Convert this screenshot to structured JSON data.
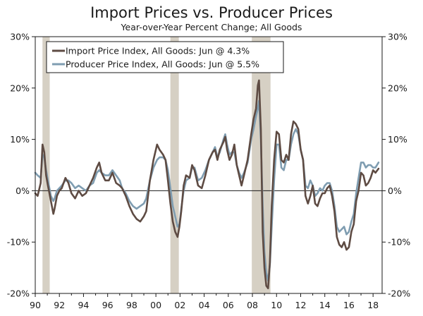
{
  "chart_data": {
    "type": "line",
    "title": "Import Prices vs. Producer Prices",
    "subtitle": "Year-over-Year Percent Change; All Goods",
    "xlabel": "",
    "ylabel": "",
    "xlim": [
      1990.0,
      2018.75
    ],
    "ylim": [
      -20,
      30
    ],
    "x_ticks": [
      1990,
      1992,
      1994,
      1996,
      1998,
      2000,
      2002,
      2004,
      2006,
      2008,
      2010,
      2012,
      2014,
      2016,
      2018
    ],
    "x_tick_labels": [
      "90",
      "92",
      "94",
      "96",
      "98",
      "00",
      "02",
      "04",
      "06",
      "08",
      "10",
      "12",
      "14",
      "16",
      "18"
    ],
    "y_ticks": [
      -20,
      -10,
      0,
      10,
      20,
      30
    ],
    "y_tick_labels": [
      "-20%",
      "-10%",
      "0%",
      "10%",
      "20%",
      "30%"
    ],
    "grid": false,
    "legend_position": "top-left",
    "recessions": [
      [
        1990.6,
        1991.2
      ],
      [
        2001.2,
        2001.9
      ],
      [
        2007.95,
        2009.5
      ]
    ],
    "colors": {
      "import": "#5e4b43",
      "producer": "#7f9db1",
      "recession": "#d6d0c4"
    },
    "series": [
      {
        "name": "Import Price Index, All Goods: Jun @ 4.3%",
        "key": "import",
        "x": [
          1990.0,
          1990.2,
          1990.45,
          1990.6,
          1990.75,
          1990.9,
          1991.05,
          1991.3,
          1991.5,
          1991.6,
          1991.8,
          1992.0,
          1992.2,
          1992.5,
          1992.75,
          1993.0,
          1993.3,
          1993.6,
          1993.9,
          1994.2,
          1994.5,
          1994.8,
          1995.1,
          1995.3,
          1995.5,
          1995.8,
          1996.1,
          1996.4,
          1996.7,
          1997.0,
          1997.2,
          1997.5,
          1997.8,
          1998.1,
          1998.4,
          1998.7,
          1999.0,
          1999.2,
          1999.5,
          1999.8,
          2000.1,
          2000.3,
          2000.6,
          2000.8,
          2001.0,
          2001.2,
          2001.4,
          2001.6,
          2001.8,
          2001.95,
          2002.1,
          2002.3,
          2002.5,
          2002.8,
          2003.0,
          2003.2,
          2003.5,
          2003.8,
          2004.1,
          2004.4,
          2004.7,
          2004.9,
          2005.1,
          2005.3,
          2005.6,
          2005.75,
          2005.9,
          2006.1,
          2006.3,
          2006.5,
          2006.7,
          2006.9,
          2007.1,
          2007.3,
          2007.6,
          2007.9,
          2008.1,
          2008.3,
          2008.45,
          2008.55,
          2008.7,
          2008.85,
          2009.0,
          2009.15,
          2009.3,
          2009.45,
          2009.6,
          2009.8,
          2010.0,
          2010.2,
          2010.4,
          2010.6,
          2010.8,
          2011.0,
          2011.2,
          2011.4,
          2011.6,
          2011.8,
          2012.0,
          2012.2,
          2012.4,
          2012.6,
          2012.8,
          2013.0,
          2013.2,
          2013.4,
          2013.6,
          2013.8,
          2014.0,
          2014.2,
          2014.4,
          2014.6,
          2014.8,
          2015.0,
          2015.2,
          2015.4,
          2015.6,
          2015.8,
          2016.0,
          2016.2,
          2016.4,
          2016.6,
          2016.8,
          2017.0,
          2017.2,
          2017.4,
          2017.6,
          2017.8,
          2018.0,
          2018.2,
          2018.45
        ],
        "values": [
          -0.5,
          -1.0,
          1.5,
          9.0,
          7.5,
          3.0,
          1.0,
          -2.0,
          -4.5,
          -3.5,
          -1.0,
          0.0,
          0.5,
          2.5,
          1.5,
          -0.5,
          -1.5,
          0.0,
          -1.0,
          -0.5,
          1.0,
          2.5,
          4.5,
          5.5,
          3.5,
          2.0,
          2.0,
          3.5,
          1.5,
          1.0,
          0.5,
          -1.0,
          -3.0,
          -4.5,
          -5.5,
          -6.0,
          -5.0,
          -4.0,
          2.0,
          6.0,
          9.0,
          8.0,
          7.0,
          6.0,
          2.0,
          -2.5,
          -6.0,
          -8.0,
          -9.0,
          -7.0,
          -4.0,
          1.0,
          3.0,
          2.5,
          5.0,
          4.0,
          1.0,
          0.5,
          3.0,
          6.0,
          7.5,
          8.0,
          6.0,
          8.0,
          9.5,
          10.5,
          8.0,
          6.0,
          7.0,
          9.0,
          5.0,
          3.0,
          1.0,
          3.0,
          6.0,
          11.0,
          14.0,
          16.0,
          20.5,
          21.5,
          12.0,
          -8.0,
          -15.0,
          -18.5,
          -19.0,
          -14.0,
          -3.0,
          6.0,
          11.5,
          11.0,
          6.0,
          5.5,
          7.0,
          6.0,
          11.0,
          13.5,
          13.0,
          12.0,
          8.0,
          6.0,
          -1.0,
          -2.5,
          -1.0,
          1.0,
          -2.5,
          -3.0,
          -1.5,
          -0.5,
          -0.5,
          0.5,
          1.0,
          -1.0,
          -4.0,
          -9.0,
          -10.5,
          -11.0,
          -10.0,
          -11.5,
          -11.0,
          -8.0,
          -6.5,
          -2.0,
          0.0,
          3.5,
          3.0,
          1.0,
          1.5,
          2.5,
          4.0,
          3.5,
          4.3
        ]
      },
      {
        "name": "Producer Price Index, All Goods: Jun @ 5.5%",
        "key": "producer",
        "x": [
          1990.0,
          1990.2,
          1990.45,
          1990.6,
          1990.75,
          1990.9,
          1991.05,
          1991.3,
          1991.5,
          1991.6,
          1991.8,
          1992.0,
          1992.2,
          1992.5,
          1992.75,
          1993.0,
          1993.3,
          1993.6,
          1993.9,
          1994.2,
          1994.5,
          1994.8,
          1995.1,
          1995.3,
          1995.5,
          1995.8,
          1996.1,
          1996.4,
          1996.7,
          1997.0,
          1997.2,
          1997.5,
          1997.8,
          1998.1,
          1998.4,
          1998.7,
          1999.0,
          1999.2,
          1999.5,
          1999.8,
          2000.1,
          2000.3,
          2000.6,
          2000.8,
          2001.0,
          2001.2,
          2001.4,
          2001.6,
          2001.8,
          2001.95,
          2002.1,
          2002.3,
          2002.5,
          2002.8,
          2003.0,
          2003.2,
          2003.5,
          2003.8,
          2004.1,
          2004.4,
          2004.7,
          2004.9,
          2005.1,
          2005.3,
          2005.6,
          2005.75,
          2005.9,
          2006.1,
          2006.3,
          2006.5,
          2006.7,
          2006.9,
          2007.1,
          2007.3,
          2007.6,
          2007.9,
          2008.1,
          2008.3,
          2008.45,
          2008.55,
          2008.7,
          2008.85,
          2009.0,
          2009.15,
          2009.3,
          2009.45,
          2009.6,
          2009.8,
          2010.0,
          2010.2,
          2010.4,
          2010.6,
          2010.8,
          2011.0,
          2011.2,
          2011.4,
          2011.6,
          2011.8,
          2012.0,
          2012.2,
          2012.4,
          2012.6,
          2012.8,
          2013.0,
          2013.2,
          2013.4,
          2013.6,
          2013.8,
          2014.0,
          2014.2,
          2014.4,
          2014.6,
          2014.8,
          2015.0,
          2015.2,
          2015.4,
          2015.6,
          2015.8,
          2016.0,
          2016.2,
          2016.4,
          2016.6,
          2016.8,
          2017.0,
          2017.2,
          2017.4,
          2017.6,
          2017.8,
          2018.0,
          2018.2,
          2018.45
        ],
        "values": [
          3.5,
          3.0,
          2.5,
          7.0,
          6.5,
          4.0,
          2.0,
          -1.0,
          -2.0,
          -1.5,
          0.0,
          0.5,
          1.0,
          2.0,
          2.0,
          1.5,
          0.5,
          1.0,
          0.5,
          0.0,
          1.0,
          1.5,
          3.5,
          4.0,
          3.5,
          3.0,
          3.0,
          4.0,
          3.0,
          2.0,
          0.5,
          -0.5,
          -2.0,
          -3.0,
          -3.5,
          -3.0,
          -2.5,
          -1.5,
          2.0,
          4.5,
          6.0,
          6.5,
          6.5,
          6.0,
          4.0,
          0.5,
          -3.0,
          -5.0,
          -7.0,
          -6.5,
          -3.5,
          0.0,
          2.0,
          2.5,
          4.5,
          4.5,
          2.0,
          2.5,
          4.0,
          6.0,
          7.5,
          8.5,
          6.5,
          7.5,
          10.0,
          11.0,
          9.0,
          7.0,
          7.5,
          7.5,
          5.0,
          3.5,
          2.5,
          3.5,
          5.5,
          10.0,
          12.0,
          14.5,
          16.0,
          17.5,
          10.0,
          -3.0,
          -12.0,
          -16.0,
          -17.5,
          -14.5,
          -7.0,
          2.0,
          9.0,
          9.0,
          4.5,
          4.0,
          6.0,
          6.0,
          9.0,
          11.0,
          12.0,
          11.0,
          8.0,
          6.0,
          1.0,
          0.5,
          2.0,
          1.0,
          -1.0,
          -0.5,
          0.5,
          0.0,
          1.0,
          1.5,
          1.5,
          0.0,
          -3.0,
          -7.0,
          -8.0,
          -7.5,
          -7.0,
          -8.5,
          -8.0,
          -6.0,
          -4.5,
          -0.5,
          2.5,
          5.5,
          5.5,
          4.5,
          5.0,
          5.0,
          4.5,
          4.5,
          5.5
        ]
      }
    ]
  }
}
